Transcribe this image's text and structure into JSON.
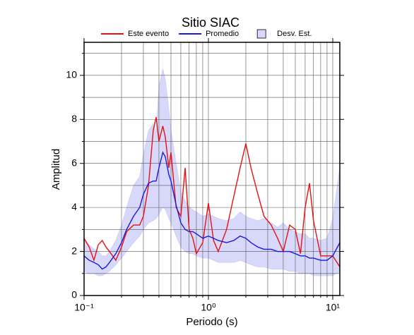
{
  "chart_data": {
    "type": "line",
    "title": "Sitio SIAC",
    "xlabel": "Periodo (s)",
    "ylabel": "Amplitud",
    "xscale": "log",
    "grid": true,
    "legend": "top",
    "xlim": [
      0.1,
      11.4
    ],
    "ylim": [
      0,
      11.5
    ],
    "xticks": [
      {
        "value": 0.1,
        "label": "10⁻¹"
      },
      {
        "value": 1,
        "label": "10⁰"
      },
      {
        "value": 10,
        "label": "10¹"
      }
    ],
    "xminor": [
      0.2,
      0.3,
      0.4,
      0.5,
      0.6,
      0.7,
      0.8,
      0.9,
      2,
      3,
      4,
      5,
      6,
      7,
      8,
      9
    ],
    "yticks": [
      0,
      2,
      4,
      6,
      8,
      10
    ],
    "yminor": [
      1,
      3,
      5,
      7,
      9,
      11
    ],
    "x": [
      0.1,
      0.11,
      0.12,
      0.13,
      0.14,
      0.15,
      0.16,
      0.18,
      0.2,
      0.22,
      0.25,
      0.28,
      0.3,
      0.33,
      0.36,
      0.38,
      0.4,
      0.43,
      0.45,
      0.48,
      0.5,
      0.55,
      0.6,
      0.65,
      0.7,
      0.75,
      0.8,
      0.9,
      1.0,
      1.1,
      1.2,
      1.4,
      1.6,
      1.8,
      2.0,
      2.2,
      2.5,
      2.8,
      3.2,
      3.6,
      4,
      4.5,
      5,
      5.5,
      6,
      6.5,
      7,
      8,
      9,
      10,
      11.4
    ],
    "series": [
      {
        "name": "Este evento",
        "color": "#e81010",
        "values": [
          2.6,
          2.2,
          1.6,
          2.3,
          2.5,
          2.2,
          2.0,
          1.6,
          2.2,
          2.9,
          3.2,
          3.2,
          3.6,
          5.0,
          7.5,
          8.1,
          7.0,
          7.7,
          7.2,
          5.8,
          6.5,
          4.0,
          3.6,
          5.8,
          3.0,
          2.6,
          1.9,
          2.4,
          4.2,
          2.5,
          2.0,
          3.0,
          4.5,
          5.8,
          6.9,
          5.8,
          4.6,
          3.6,
          3.2,
          2.6,
          2.0,
          3.2,
          3.0,
          1.9,
          4.0,
          5.1,
          3.4,
          1.8,
          1.8,
          1.8,
          1.3
        ]
      },
      {
        "name": "Promedio",
        "color": "#1a1ae0",
        "values": [
          1.8,
          1.6,
          1.5,
          1.4,
          1.2,
          1.3,
          1.5,
          1.9,
          2.4,
          3.0,
          3.6,
          4.0,
          4.6,
          5.1,
          5.2,
          5.2,
          5.8,
          6.5,
          6.3,
          5.5,
          5.2,
          4.1,
          3.3,
          3.0,
          2.9,
          2.9,
          2.8,
          2.6,
          2.7,
          2.6,
          2.5,
          2.4,
          2.5,
          2.7,
          2.6,
          2.4,
          2.2,
          2.1,
          2.1,
          2.0,
          2.0,
          2.0,
          1.9,
          1.8,
          1.8,
          1.7,
          1.7,
          1.6,
          1.6,
          1.8,
          2.4
        ]
      },
      {
        "name": "Desv. Est.",
        "type": "band",
        "color": "#d8d8fb",
        "lower": [
          1.1,
          1.0,
          1.0,
          0.9,
          0.9,
          1.0,
          1.1,
          1.4,
          1.7,
          2.0,
          2.4,
          2.7,
          3.0,
          3.3,
          3.4,
          3.5,
          3.7,
          4.0,
          3.9,
          3.5,
          3.3,
          2.7,
          2.2,
          2.0,
          1.9,
          1.9,
          1.8,
          1.7,
          1.7,
          1.6,
          1.5,
          1.5,
          1.5,
          1.6,
          1.5,
          1.4,
          1.3,
          1.3,
          1.2,
          1.2,
          1.2,
          1.1,
          1.1,
          1.0,
          1.0,
          1.0,
          0.9,
          0.9,
          0.9,
          0.9,
          1.1
        ],
        "upper": [
          2.5,
          2.3,
          2.1,
          2.0,
          1.8,
          1.8,
          2.0,
          2.5,
          3.2,
          4.0,
          5.0,
          5.4,
          6.4,
          7.5,
          7.8,
          7.4,
          9.5,
          10.3,
          9.8,
          8.5,
          7.5,
          6.0,
          4.7,
          4.3,
          4.0,
          3.9,
          3.8,
          3.6,
          3.7,
          3.6,
          3.5,
          3.4,
          3.5,
          3.8,
          3.6,
          3.5,
          3.4,
          3.5,
          3.3,
          3.1,
          3.3,
          3.0,
          2.9,
          2.8,
          2.8,
          2.6,
          2.6,
          2.5,
          2.6,
          3.5,
          5.8
        ]
      }
    ]
  }
}
